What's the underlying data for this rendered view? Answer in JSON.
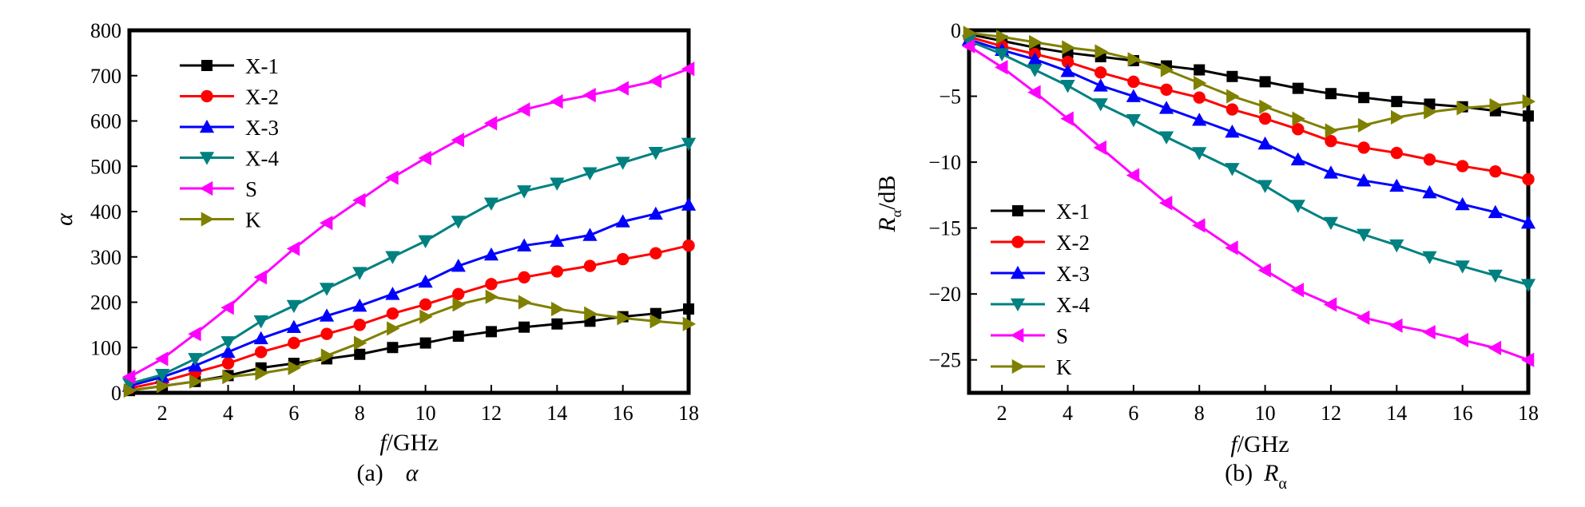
{
  "chart_data": [
    {
      "type": "line",
      "caption_prefix": "(a)",
      "caption_symbol": "α",
      "xlabel_italic": "f",
      "xlabel_rest": "/GHz",
      "ylabel": "α",
      "xlim": [
        1,
        18
      ],
      "ylim": [
        0,
        800
      ],
      "xticks": [
        2,
        4,
        6,
        8,
        10,
        12,
        14,
        16,
        18
      ],
      "yticks": [
        0,
        100,
        200,
        300,
        400,
        500,
        600,
        700,
        800
      ],
      "grid": false,
      "legend_position": "top-left",
      "x": [
        1,
        2,
        3,
        4,
        5,
        6,
        7,
        8,
        9,
        10,
        11,
        12,
        13,
        14,
        15,
        16,
        17,
        18
      ],
      "series": [
        {
          "name": "X-1",
          "color": "#000000",
          "marker": "square",
          "values": [
            5,
            15,
            25,
            38,
            55,
            65,
            75,
            85,
            100,
            110,
            125,
            135,
            145,
            152,
            158,
            168,
            175,
            185
          ]
        },
        {
          "name": "X-2",
          "color": "#ff0000",
          "marker": "circle",
          "values": [
            10,
            25,
            45,
            65,
            90,
            110,
            130,
            150,
            175,
            195,
            218,
            240,
            255,
            268,
            280,
            295,
            308,
            325
          ]
        },
        {
          "name": "X-3",
          "color": "#0000ff",
          "marker": "triangle-up",
          "values": [
            15,
            35,
            60,
            90,
            120,
            145,
            170,
            192,
            218,
            245,
            280,
            305,
            325,
            335,
            348,
            378,
            395,
            415
          ]
        },
        {
          "name": "X-4",
          "color": "#008080",
          "marker": "triangle-down",
          "values": [
            20,
            40,
            75,
            112,
            158,
            192,
            230,
            265,
            300,
            335,
            378,
            418,
            445,
            462,
            485,
            508,
            530,
            550
          ]
        },
        {
          "name": "S",
          "color": "#ff00ff",
          "marker": "triangle-left",
          "values": [
            35,
            75,
            130,
            188,
            255,
            318,
            375,
            425,
            475,
            518,
            558,
            595,
            625,
            643,
            657,
            672,
            688,
            715
          ]
        },
        {
          "name": "K",
          "color": "#808000",
          "marker": "triangle-right",
          "values": [
            5,
            15,
            25,
            35,
            43,
            55,
            82,
            110,
            142,
            168,
            195,
            212,
            200,
            185,
            175,
            165,
            158,
            152
          ]
        }
      ]
    },
    {
      "type": "line",
      "caption_prefix": "(b)",
      "caption_symbol": "R",
      "caption_subscript": "α",
      "xlabel_italic": "f",
      "xlabel_rest": "/GHz",
      "ylabel_main": "R",
      "ylabel_sub": "α",
      "ylabel_rest": "/dB",
      "xlim": [
        1,
        18
      ],
      "ylim": [
        -27.5,
        0
      ],
      "xticks": [
        2,
        4,
        6,
        8,
        10,
        12,
        14,
        16,
        18
      ],
      "yticks": [
        0,
        -5,
        -10,
        -15,
        -20,
        -25
      ],
      "grid": false,
      "legend_position": "bottom-left",
      "x": [
        1,
        2,
        3,
        4,
        5,
        6,
        7,
        8,
        9,
        10,
        11,
        12,
        13,
        14,
        15,
        16,
        17,
        18
      ],
      "series": [
        {
          "name": "X-1",
          "color": "#000000",
          "marker": "square",
          "values": [
            -0.3,
            -0.8,
            -1.3,
            -1.7,
            -2.0,
            -2.3,
            -2.7,
            -3.0,
            -3.5,
            -3.9,
            -4.4,
            -4.8,
            -5.1,
            -5.4,
            -5.6,
            -5.8,
            -6.1,
            -6.5
          ]
        },
        {
          "name": "X-2",
          "color": "#ff0000",
          "marker": "circle",
          "values": [
            -0.5,
            -1.2,
            -1.8,
            -2.4,
            -3.2,
            -3.9,
            -4.5,
            -5.1,
            -6.0,
            -6.7,
            -7.5,
            -8.4,
            -8.9,
            -9.3,
            -9.8,
            -10.3,
            -10.7,
            -11.3
          ]
        },
        {
          "name": "X-3",
          "color": "#0000ff",
          "marker": "triangle-up",
          "values": [
            -0.7,
            -1.5,
            -2.2,
            -3.1,
            -4.2,
            -5.0,
            -5.9,
            -6.8,
            -7.7,
            -8.6,
            -9.8,
            -10.8,
            -11.4,
            -11.8,
            -12.3,
            -13.2,
            -13.8,
            -14.6
          ]
        },
        {
          "name": "X-4",
          "color": "#008080",
          "marker": "triangle-down",
          "values": [
            -0.8,
            -1.8,
            -3.0,
            -4.2,
            -5.6,
            -6.8,
            -8.1,
            -9.3,
            -10.5,
            -11.8,
            -13.3,
            -14.6,
            -15.5,
            -16.3,
            -17.2,
            -17.9,
            -18.6,
            -19.3
          ]
        },
        {
          "name": "S",
          "color": "#ff00ff",
          "marker": "triangle-left",
          "values": [
            -1.2,
            -2.8,
            -4.7,
            -6.7,
            -8.9,
            -11.0,
            -13.1,
            -14.8,
            -16.5,
            -18.2,
            -19.7,
            -20.8,
            -21.8,
            -22.4,
            -22.9,
            -23.5,
            -24.1,
            -25.0
          ]
        },
        {
          "name": "K",
          "color": "#808000",
          "marker": "triangle-right",
          "values": [
            -0.2,
            -0.5,
            -0.9,
            -1.3,
            -1.6,
            -2.2,
            -3.0,
            -4.0,
            -5.0,
            -5.8,
            -6.7,
            -7.6,
            -7.2,
            -6.6,
            -6.2,
            -5.9,
            -5.7,
            -5.4
          ]
        }
      ]
    }
  ]
}
